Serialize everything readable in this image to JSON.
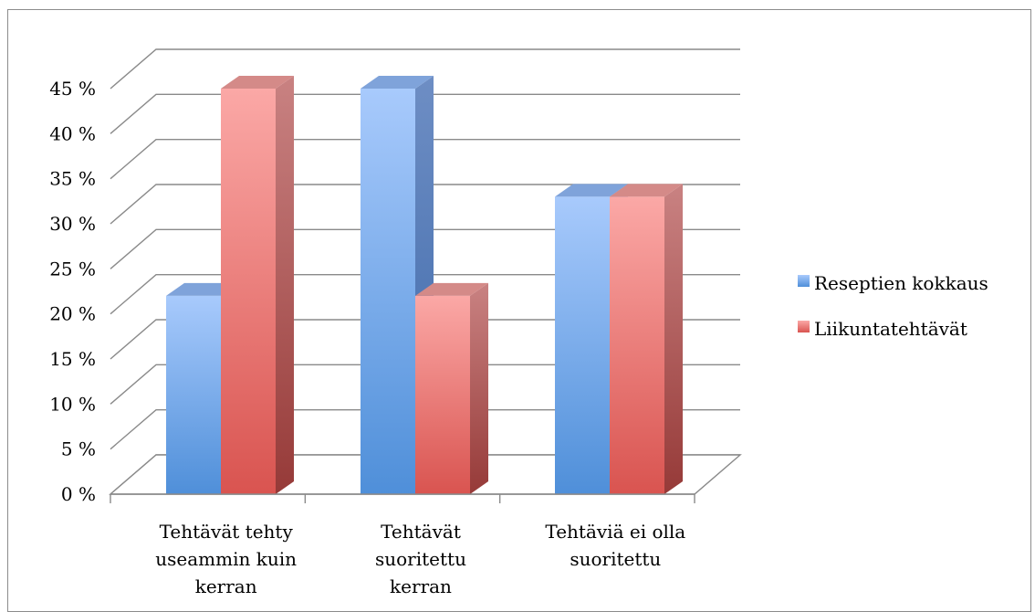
{
  "chart_data": {
    "type": "bar",
    "title": "",
    "xlabel": "",
    "ylabel": "",
    "ylim": [
      0,
      45
    ],
    "y_ticks": [
      "0 %",
      "5 %",
      "10 %",
      "15 %",
      "20 %",
      "25 %",
      "30 %",
      "35 %",
      "40 %",
      "45 %"
    ],
    "categories": [
      [
        "Tehtävät tehty",
        "useammin kuin",
        "kerran"
      ],
      [
        "Tehtävät",
        "suoritettu",
        "kerran"
      ],
      [
        "Tehtäviä ei olla",
        "suoritettu"
      ]
    ],
    "series": [
      {
        "name": "Reseptien kokkaus",
        "values": [
          22,
          45,
          33
        ],
        "color": "#5b8fd6"
      },
      {
        "name": "Liikuntatehtävät",
        "values": [
          45,
          22,
          33
        ],
        "color": "#e06a66"
      }
    ],
    "legend": "right",
    "grid": true,
    "style": "3d-column"
  }
}
